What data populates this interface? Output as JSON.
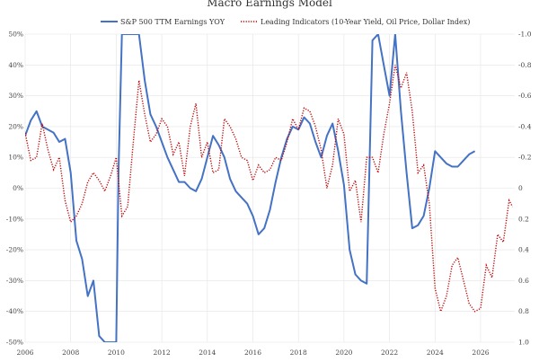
{
  "chart_data": {
    "type": "line",
    "title": "Macro Earnings Model",
    "xlabel": "",
    "ylabel": "",
    "grid": true,
    "legend_position": "top-center",
    "xlim": [
      2006,
      2027.5
    ],
    "ylim": [
      -50,
      50
    ],
    "y2lim": [
      -1.0,
      1.0
    ],
    "y2_inverted": true,
    "x_ticks": [
      "2006",
      "2008",
      "2010",
      "2012",
      "2014",
      "2016",
      "2018",
      "2020",
      "2022",
      "2024",
      "2026"
    ],
    "y_ticks": [
      "50%",
      "40%",
      "30%",
      "20%",
      "10%",
      "0%",
      "-10%",
      "-20%",
      "-30%",
      "-40%",
      "-50%"
    ],
    "y2_ticks": [
      "-1.0",
      "-0.8",
      "-0.6",
      "-0.4",
      "-0.2",
      "0",
      "0.2",
      "0.4",
      "0.6",
      "0.8",
      "1.0"
    ],
    "series": [
      {
        "name": "S&P 500 TTM Earnings YOY",
        "axis": "left",
        "color": "#4472c4",
        "style": "solid",
        "x": [
          2006.0,
          2006.25,
          2006.5,
          2006.75,
          2007.0,
          2007.25,
          2007.5,
          2007.75,
          2008.0,
          2008.25,
          2008.5,
          2008.75,
          2009.0,
          2009.25,
          2009.5,
          2009.75,
          2010.0,
          2010.1,
          2010.25,
          2010.5,
          2010.75,
          2011.0,
          2011.25,
          2011.5,
          2011.75,
          2012.0,
          2012.25,
          2012.5,
          2012.75,
          2013.0,
          2013.25,
          2013.5,
          2013.75,
          2014.0,
          2014.25,
          2014.5,
          2014.75,
          2015.0,
          2015.25,
          2015.5,
          2015.75,
          2016.0,
          2016.25,
          2016.5,
          2016.75,
          2017.0,
          2017.25,
          2017.5,
          2017.75,
          2018.0,
          2018.25,
          2018.5,
          2018.75,
          2019.0,
          2019.25,
          2019.5,
          2019.75,
          2020.0,
          2020.25,
          2020.5,
          2020.75,
          2021.0,
          2021.25,
          2021.5,
          2021.75,
          2022.0,
          2022.25,
          2022.5,
          2022.75,
          2023.0,
          2023.25,
          2023.5,
          2023.75,
          2024.0,
          2024.25,
          2024.5,
          2024.75,
          2025.0,
          2025.25,
          2025.5,
          2025.75
        ],
        "y": [
          17,
          22,
          25,
          20,
          19,
          18,
          15,
          16,
          5,
          -17,
          -23,
          -35,
          -30,
          -48,
          -50,
          -50,
          -50,
          5,
          50,
          50,
          50,
          50,
          35,
          24,
          20,
          15,
          10,
          6,
          2,
          2,
          0,
          -1,
          3,
          10,
          17,
          14,
          10,
          3,
          -1,
          -3,
          -5,
          -9,
          -15,
          -13,
          -7,
          2,
          10,
          16,
          20,
          19,
          23,
          21,
          15,
          10,
          17,
          21,
          12,
          1,
          -20,
          -28,
          -30,
          -31,
          48,
          50,
          40,
          30,
          50,
          25,
          5,
          -13,
          -12,
          -9,
          0,
          12,
          10,
          8,
          7,
          7,
          9,
          11,
          12
        ]
      },
      {
        "name": "Leading Indicators (10-Year Yield, Oil Price, Dollar Index)",
        "axis": "right",
        "color": "#c00000",
        "style": "dotted",
        "x": [
          2006.0,
          2006.25,
          2006.5,
          2006.75,
          2007.0,
          2007.25,
          2007.5,
          2007.75,
          2008.0,
          2008.25,
          2008.5,
          2008.75,
          2009.0,
          2009.25,
          2009.5,
          2009.75,
          2010.0,
          2010.25,
          2010.5,
          2010.75,
          2011.0,
          2011.25,
          2011.5,
          2011.75,
          2012.0,
          2012.25,
          2012.5,
          2012.75,
          2013.0,
          2013.25,
          2013.5,
          2013.75,
          2014.0,
          2014.25,
          2014.5,
          2014.75,
          2015.0,
          2015.25,
          2015.5,
          2015.75,
          2016.0,
          2016.25,
          2016.5,
          2016.75,
          2017.0,
          2017.25,
          2017.5,
          2017.75,
          2018.0,
          2018.25,
          2018.5,
          2018.75,
          2019.0,
          2019.25,
          2019.5,
          2019.75,
          2020.0,
          2020.25,
          2020.5,
          2020.75,
          2021.0,
          2021.25,
          2021.5,
          2021.75,
          2022.0,
          2022.25,
          2022.5,
          2022.75,
          2023.0,
          2023.25,
          2023.5,
          2023.75,
          2024.0,
          2024.25,
          2024.5,
          2024.75,
          2025.0,
          2025.25,
          2025.5,
          2025.75,
          2026.0,
          2026.25,
          2026.5,
          2026.75,
          2027.0,
          2027.25,
          2027.4
        ],
        "y": [
          -0.36,
          -0.18,
          -0.2,
          -0.42,
          -0.25,
          -0.12,
          -0.2,
          0.08,
          0.22,
          0.18,
          0.1,
          -0.04,
          -0.1,
          -0.05,
          0.02,
          -0.08,
          -0.2,
          0.18,
          0.12,
          -0.3,
          -0.7,
          -0.48,
          -0.3,
          -0.35,
          -0.45,
          -0.4,
          -0.22,
          -0.3,
          -0.08,
          -0.4,
          -0.55,
          -0.2,
          -0.3,
          -0.1,
          -0.12,
          -0.45,
          -0.4,
          -0.32,
          -0.2,
          -0.18,
          -0.05,
          -0.15,
          -0.1,
          -0.12,
          -0.2,
          -0.18,
          -0.3,
          -0.45,
          -0.38,
          -0.52,
          -0.5,
          -0.4,
          -0.25,
          0.0,
          -0.15,
          -0.45,
          -0.35,
          0.02,
          -0.05,
          0.22,
          -0.2,
          -0.2,
          -0.1,
          -0.35,
          -0.55,
          -0.8,
          -0.65,
          -0.75,
          -0.5,
          -0.1,
          -0.15,
          0.1,
          0.65,
          0.8,
          0.7,
          0.5,
          0.45,
          0.6,
          0.75,
          0.8,
          0.78,
          0.5,
          0.58,
          0.3,
          0.35,
          0.08,
          0.12
        ]
      }
    ]
  }
}
